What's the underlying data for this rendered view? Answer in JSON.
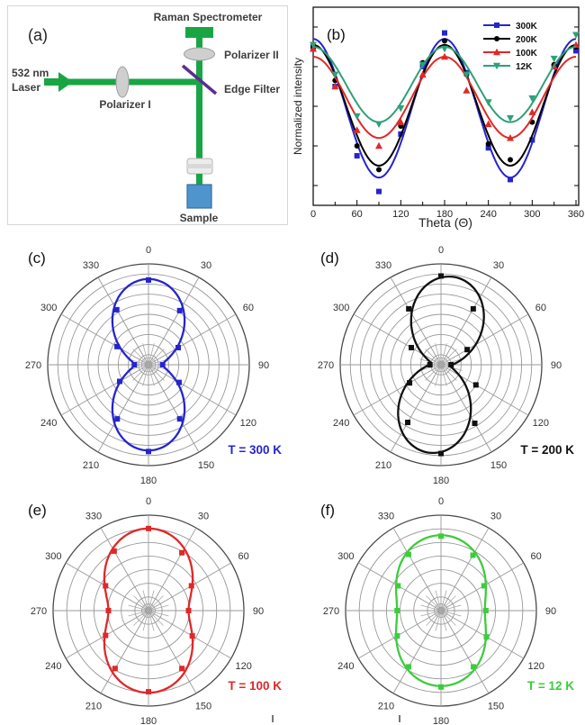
{
  "figure": {
    "panel_a": {
      "panel_label": "(a)",
      "spectrometer_label": "Raman Spectrometer",
      "polarizer2_label": "Polarizer II",
      "edge_filter_label": "Edge Filter",
      "laser_label_line1": "532 nm",
      "laser_label_line2": "Laser",
      "polarizer1_label": "Polarizer I",
      "sample_label": "Sample",
      "colors": {
        "beam_green": "#1aa545",
        "edge_filter_purple": "#5b2d8e",
        "sample_blue": "#4f94cd",
        "optic_gray": "#d9d9d9",
        "label_text": "#3d3d3d"
      }
    }
  },
  "chart_data": [
    {
      "id": "b",
      "type": "line",
      "panel_label": "(b)",
      "xlabel": "Theta (Θ)",
      "ylabel": "Normalized intensity",
      "x_ticks": [
        0,
        60,
        120,
        180,
        240,
        300,
        360
      ],
      "x_minor_step": 30,
      "xlim": [
        0,
        365
      ],
      "ylim": [
        0,
        1
      ],
      "y_tick_labels_shown": false,
      "grid": false,
      "legend_position": "top-right",
      "series": [
        {
          "name": "300K",
          "color": "#2525cd",
          "marker": "square",
          "x": [
            0,
            30,
            60,
            90,
            120,
            150,
            180,
            210,
            240,
            270,
            300,
            330,
            360
          ],
          "y": [
            0.8,
            0.6,
            0.25,
            0.07,
            0.36,
            0.7,
            0.87,
            0.67,
            0.29,
            0.13,
            0.33,
            0.7,
            0.78
          ],
          "fit": {
            "min": 0.14,
            "max": 0.84,
            "phase_deg": 0
          }
        },
        {
          "name": "200K",
          "color": "#000000",
          "marker": "circle",
          "x": [
            0,
            30,
            60,
            90,
            120,
            150,
            180,
            210,
            240,
            270,
            300,
            330,
            360
          ],
          "y": [
            0.8,
            0.63,
            0.3,
            0.18,
            0.4,
            0.72,
            0.83,
            0.66,
            0.31,
            0.23,
            0.42,
            0.71,
            0.8
          ],
          "fit": {
            "min": 0.2,
            "max": 0.81,
            "phase_deg": 0
          }
        },
        {
          "name": "100K",
          "color": "#e02828",
          "marker": "triangle-up",
          "x": [
            0,
            30,
            60,
            90,
            120,
            150,
            180,
            210,
            240,
            270,
            300,
            330,
            360
          ],
          "y": [
            0.79,
            0.6,
            0.38,
            0.3,
            0.42,
            0.66,
            0.75,
            0.58,
            0.41,
            0.34,
            0.47,
            0.7,
            0.81
          ],
          "fit": {
            "min": 0.34,
            "max": 0.75,
            "phase_deg": 0
          }
        },
        {
          "name": "12K",
          "color": "#2fa077",
          "marker": "triangle-down",
          "x": [
            0,
            30,
            60,
            90,
            120,
            150,
            180,
            210,
            240,
            270,
            300,
            330,
            360
          ],
          "y": [
            0.81,
            0.66,
            0.45,
            0.41,
            0.49,
            0.71,
            0.79,
            0.66,
            0.52,
            0.44,
            0.54,
            0.74,
            0.86
          ],
          "fit": {
            "min": 0.42,
            "max": 0.8,
            "phase_deg": 0
          }
        }
      ]
    },
    {
      "id": "c",
      "type": "polar",
      "panel_label": "(c)",
      "temp_label": "T = 300 K",
      "color": "#2525cd",
      "rings": 10,
      "r_unit": "fraction_of_outer_radius",
      "angle_labels": [
        "0",
        "30",
        "60",
        "90",
        "120",
        "150",
        "180",
        "210",
        "240",
        "270",
        "300",
        "330"
      ],
      "angles_deg": [
        0,
        30,
        60,
        90,
        120,
        150,
        180,
        210,
        240,
        270,
        300,
        330
      ],
      "r": [
        0.84,
        0.62,
        0.34,
        0.14,
        0.35,
        0.62,
        0.86,
        0.62,
        0.33,
        0.14,
        0.36,
        0.63
      ],
      "fit": {
        "min": 0.14,
        "max": 0.85,
        "phase_deg": 0
      }
    },
    {
      "id": "d",
      "type": "polar",
      "panel_label": "(d)",
      "temp_label": "T = 200 K",
      "color": "#111111",
      "rings": 10,
      "r_unit": "fraction_of_outer_radius",
      "angle_labels": [
        "0",
        "30",
        "60",
        "90",
        "120",
        "150",
        "180",
        "210",
        "240",
        "270",
        "300",
        "330"
      ],
      "angles_deg": [
        0,
        30,
        60,
        90,
        120,
        150,
        180,
        210,
        240,
        270,
        300,
        330
      ],
      "r": [
        0.88,
        0.64,
        0.3,
        0.1,
        0.4,
        0.67,
        0.88,
        0.66,
        0.36,
        0.11,
        0.34,
        0.64
      ],
      "fit": {
        "min": 0.1,
        "max": 0.88,
        "phase_deg": 8
      }
    },
    {
      "id": "e",
      "type": "polar",
      "panel_label": "(e)",
      "temp_label": "T = 100 K",
      "color": "#e02828",
      "rings": 7,
      "r_unit": "fraction_of_outer_radius",
      "angle_labels": [
        "0",
        "30",
        "60",
        "90",
        "120",
        "150",
        "180",
        "210",
        "240",
        "270",
        "300",
        "330"
      ],
      "angles_deg": [
        0,
        30,
        60,
        90,
        120,
        150,
        180,
        210,
        240,
        270,
        300,
        330
      ],
      "r": [
        0.86,
        0.7,
        0.52,
        0.42,
        0.53,
        0.7,
        0.85,
        0.7,
        0.52,
        0.42,
        0.52,
        0.72
      ],
      "fit": {
        "min": 0.42,
        "max": 0.86,
        "phase_deg": 0
      }
    },
    {
      "id": "f",
      "type": "polar",
      "panel_label": "(f)",
      "temp_label": "T = 12 K",
      "color": "#3dcc3d",
      "rings": 7,
      "r_unit": "fraction_of_outer_radius",
      "angle_labels": [
        "0",
        "30",
        "60",
        "90",
        "120",
        "150",
        "180",
        "210",
        "240",
        "270",
        "300",
        "330"
      ],
      "angles_deg": [
        0,
        30,
        60,
        90,
        120,
        150,
        180,
        210,
        240,
        270,
        300,
        330
      ],
      "r": [
        0.78,
        0.67,
        0.52,
        0.47,
        0.55,
        0.68,
        0.8,
        0.68,
        0.53,
        0.46,
        0.52,
        0.68
      ],
      "fit": {
        "min": 0.46,
        "max": 0.79,
        "phase_deg": 0
      }
    }
  ]
}
